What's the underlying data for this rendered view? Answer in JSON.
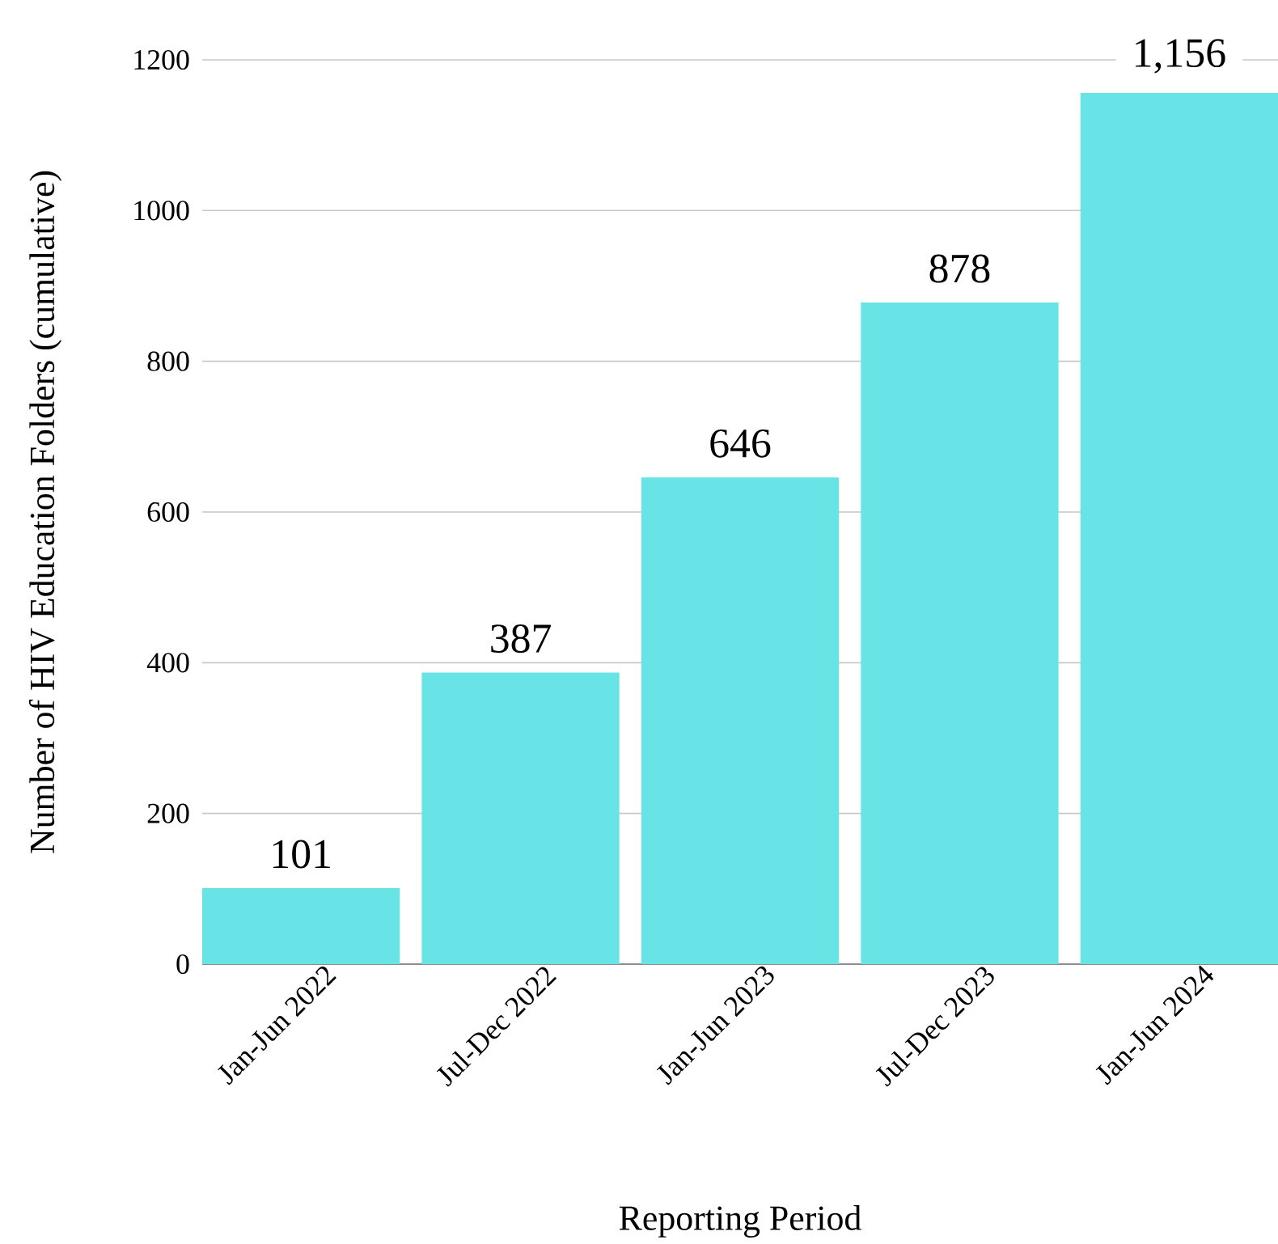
{
  "chart_data": {
    "type": "bar",
    "xlabel": "Reporting Period",
    "ylabel": "Number of HIV Education Folders (cumulative)",
    "categories": [
      "Jan-Jun 2022",
      "Jul-Dec 2022",
      "Jan-Jun 2023",
      "Jul-Dec 2023",
      "Jan-Jun 2024"
    ],
    "values": [
      101,
      387,
      646,
      878,
      1156
    ],
    "value_labels": [
      "101",
      "387",
      "646",
      "878",
      "1,156"
    ],
    "color": "#68e3e6",
    "ylim": [
      0,
      1200
    ],
    "yticks": [
      0,
      200,
      400,
      600,
      800,
      1000,
      1200
    ],
    "grid": "y"
  }
}
